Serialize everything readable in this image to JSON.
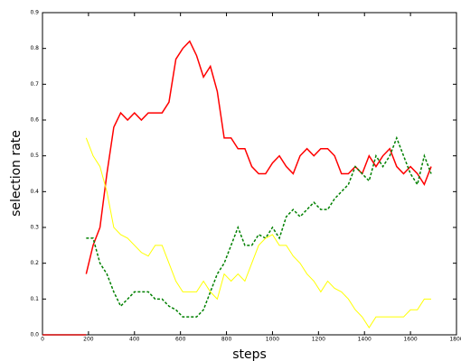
{
  "chart_data": {
    "type": "line",
    "xlabel": "steps",
    "ylabel": "selection rate",
    "xlim": [
      0,
      1800
    ],
    "ylim": [
      0,
      0.9
    ],
    "xticks": [
      0,
      200,
      400,
      600,
      800,
      1000,
      1200,
      1400,
      1600,
      1800
    ],
    "yticks": [
      {
        "value": 0,
        "label": "0.0"
      },
      0.1,
      0.2,
      0.3,
      0.4,
      0.5,
      0.6,
      0.7,
      0.8,
      0.9
    ],
    "x": [
      190,
      220,
      250,
      280,
      310,
      340,
      370,
      400,
      430,
      460,
      490,
      520,
      550,
      580,
      610,
      640,
      670,
      700,
      730,
      760,
      790,
      820,
      850,
      880,
      910,
      940,
      970,
      1000,
      1030,
      1060,
      1090,
      1120,
      1150,
      1180,
      1210,
      1240,
      1270,
      1300,
      1330,
      1360,
      1390,
      1420,
      1450,
      1480,
      1510,
      1540,
      1570,
      1600,
      1630,
      1660,
      1690
    ],
    "series": [
      {
        "color": "#ff0000",
        "dash": false,
        "width": 1.5,
        "values": [
          0.17,
          0.25,
          0.3,
          0.45,
          0.58,
          0.62,
          0.6,
          0.62,
          0.6,
          0.62,
          0.62,
          0.62,
          0.65,
          0.77,
          0.8,
          0.82,
          0.78,
          0.72,
          0.75,
          0.68,
          0.55,
          0.55,
          0.52,
          0.52,
          0.47,
          0.45,
          0.45,
          0.48,
          0.5,
          0.47,
          0.45,
          0.5,
          0.52,
          0.5,
          0.52,
          0.52,
          0.5,
          0.45,
          0.45,
          0.47,
          0.45,
          0.5,
          0.47,
          0.5,
          0.52,
          0.47,
          0.45,
          0.47,
          0.45,
          0.42,
          0.47
        ]
      },
      {
        "color": "#008000",
        "dash": true,
        "width": 1.5,
        "values": [
          0.27,
          0.27,
          0.2,
          0.17,
          0.12,
          0.08,
          0.1,
          0.12,
          0.12,
          0.12,
          0.1,
          0.1,
          0.08,
          0.07,
          0.05,
          0.05,
          0.05,
          0.07,
          0.12,
          0.17,
          0.2,
          0.25,
          0.3,
          0.25,
          0.25,
          0.28,
          0.27,
          0.3,
          0.27,
          0.33,
          0.35,
          0.33,
          0.35,
          0.37,
          0.35,
          0.35,
          0.38,
          0.4,
          0.42,
          0.47,
          0.45,
          0.43,
          0.5,
          0.47,
          0.5,
          0.55,
          0.5,
          0.45,
          0.42,
          0.5,
          0.45
        ]
      },
      {
        "color": "#ffff00",
        "dash": false,
        "width": 1,
        "values": [
          0.55,
          0.5,
          0.47,
          0.4,
          0.3,
          0.28,
          0.27,
          0.25,
          0.23,
          0.22,
          0.25,
          0.25,
          0.2,
          0.15,
          0.12,
          0.12,
          0.12,
          0.15,
          0.12,
          0.1,
          0.17,
          0.15,
          0.17,
          0.15,
          0.2,
          0.25,
          0.27,
          0.28,
          0.25,
          0.25,
          0.22,
          0.2,
          0.17,
          0.15,
          0.12,
          0.15,
          0.13,
          0.12,
          0.1,
          0.07,
          0.05,
          0.02,
          0.05,
          0.05,
          0.05,
          0.05,
          0.05,
          0.07,
          0.07,
          0.1,
          0.1
        ]
      },
      {
        "color": "#cc0000",
        "dash": false,
        "width": 1.5,
        "x": [
          0,
          190
        ],
        "values": [
          0,
          0
        ]
      }
    ]
  }
}
